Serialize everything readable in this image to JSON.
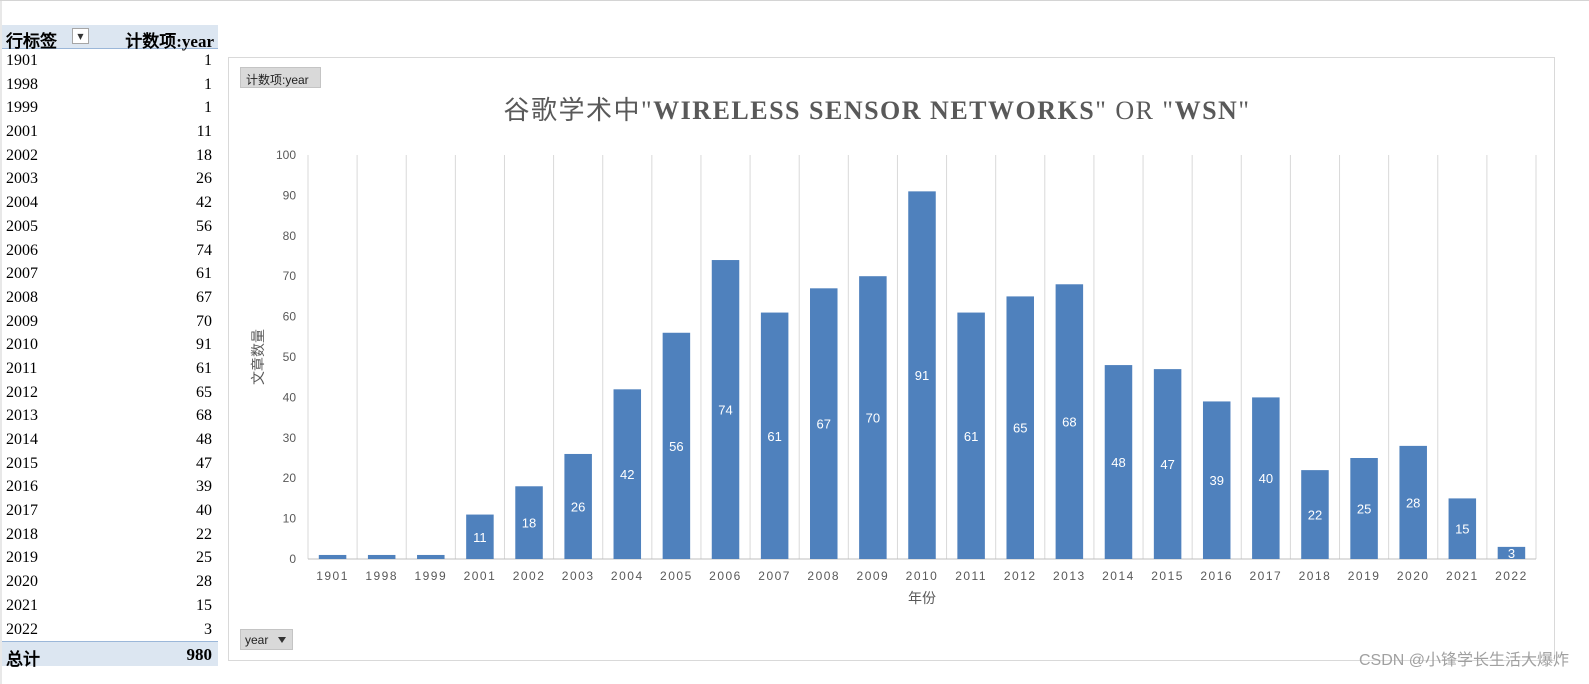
{
  "pivot": {
    "row_label_header": "行标签",
    "dropdown_icon": "filter-dropdown-icon",
    "count_header": "计数项:year",
    "rows": [
      {
        "year": "1901",
        "count": "1"
      },
      {
        "year": "1998",
        "count": "1"
      },
      {
        "year": "1999",
        "count": "1"
      },
      {
        "year": "2001",
        "count": "11"
      },
      {
        "year": "2002",
        "count": "18"
      },
      {
        "year": "2003",
        "count": "26"
      },
      {
        "year": "2004",
        "count": "42"
      },
      {
        "year": "2005",
        "count": "56"
      },
      {
        "year": "2006",
        "count": "74"
      },
      {
        "year": "2007",
        "count": "61"
      },
      {
        "year": "2008",
        "count": "67"
      },
      {
        "year": "2009",
        "count": "70"
      },
      {
        "year": "2010",
        "count": "91"
      },
      {
        "year": "2011",
        "count": "61"
      },
      {
        "year": "2012",
        "count": "65"
      },
      {
        "year": "2013",
        "count": "68"
      },
      {
        "year": "2014",
        "count": "48"
      },
      {
        "year": "2015",
        "count": "47"
      },
      {
        "year": "2016",
        "count": "39"
      },
      {
        "year": "2017",
        "count": "40"
      },
      {
        "year": "2018",
        "count": "22"
      },
      {
        "year": "2019",
        "count": "25"
      },
      {
        "year": "2020",
        "count": "28"
      },
      {
        "year": "2021",
        "count": "15"
      },
      {
        "year": "2022",
        "count": "3"
      }
    ],
    "total_label": "总计",
    "total_value": "980"
  },
  "chart_buttons": {
    "values_field": "计数项:year",
    "axis_field": "year"
  },
  "watermark": "CSDN @小锋学长生活大爆炸",
  "colors": {
    "bar": "#4f81bd",
    "gridline": "#d9d9d9",
    "pivot_header_bg": "#dce6f1",
    "title": "#595959"
  },
  "chart_data": {
    "type": "bar",
    "title_parts": [
      {
        "text": "谷歌学术中\"",
        "bold": false
      },
      {
        "text": "WIRELESS SENSOR NETWORKS",
        "bold": true
      },
      {
        "text": "\" OR \"",
        "bold": false
      },
      {
        "text": "WSN",
        "bold": true
      },
      {
        "text": "\"",
        "bold": false
      }
    ],
    "xlabel": "年份",
    "ylabel": "文章数量",
    "ylim": [
      0,
      100
    ],
    "yticks": [
      0,
      10,
      20,
      30,
      40,
      50,
      60,
      70,
      80,
      90,
      100
    ],
    "grid": "vertical",
    "legend": "none",
    "categories": [
      "1901",
      "1998",
      "1999",
      "2001",
      "2002",
      "2003",
      "2004",
      "2005",
      "2006",
      "2007",
      "2008",
      "2009",
      "2010",
      "2011",
      "2012",
      "2013",
      "2014",
      "2015",
      "2016",
      "2017",
      "2018",
      "2019",
      "2020",
      "2021",
      "2022"
    ],
    "values": [
      1,
      1,
      1,
      11,
      18,
      26,
      42,
      56,
      74,
      61,
      67,
      70,
      91,
      61,
      65,
      68,
      48,
      47,
      39,
      40,
      22,
      25,
      28,
      15,
      3
    ],
    "data_labels": [
      "",
      "",
      "",
      "11",
      "18",
      "26",
      "42",
      "56",
      "74",
      "61",
      "67",
      "70",
      "91",
      "61",
      "65",
      "68",
      "48",
      "47",
      "39",
      "40",
      "22",
      "25",
      "28",
      "15",
      "3"
    ]
  }
}
